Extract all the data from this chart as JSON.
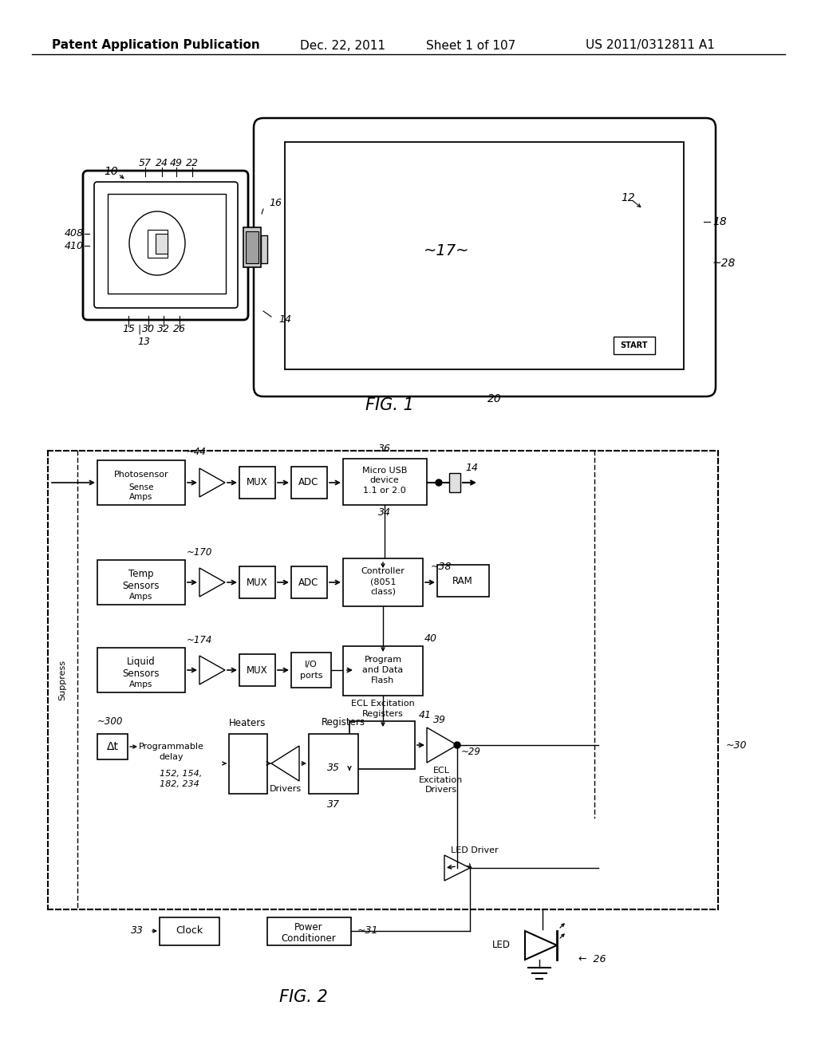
{
  "bg_color": "#ffffff",
  "header_left": "Patent Application Publication",
  "header_mid1": "Dec. 22, 2011",
  "header_mid2": "Sheet 1 of 107",
  "header_right": "US 2011/0312811 A1"
}
